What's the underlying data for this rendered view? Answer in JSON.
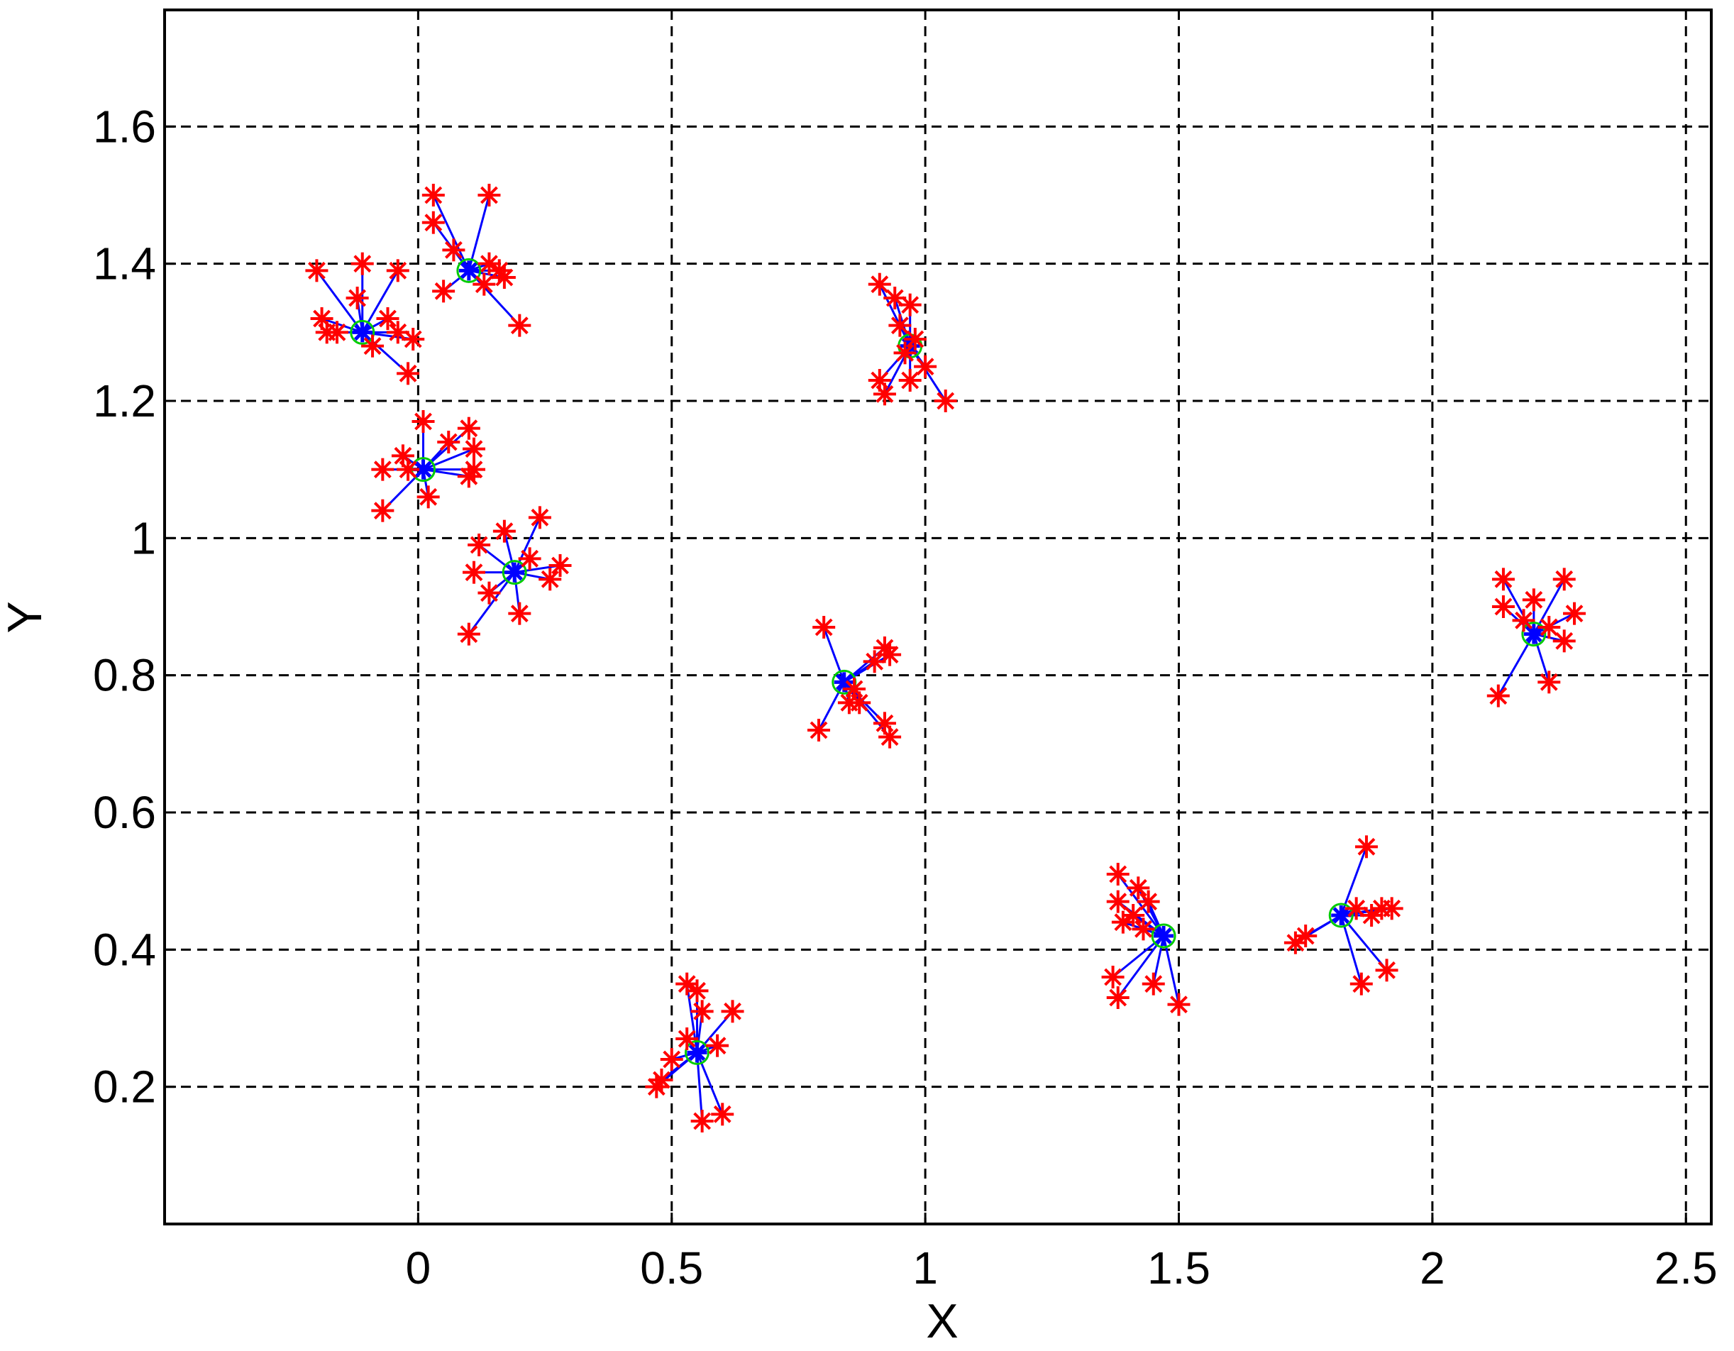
{
  "chart_data": {
    "type": "scatter",
    "title": "",
    "xlabel": "X",
    "ylabel": "Y",
    "xlim": [
      -0.5,
      2.55
    ],
    "ylim": [
      0,
      1.77
    ],
    "grid": true,
    "x_ticks": [
      {
        "value": 0,
        "label": "0"
      },
      {
        "value": 0.5,
        "label": "0.5"
      },
      {
        "value": 1,
        "label": "1"
      },
      {
        "value": 1.5,
        "label": "1.5"
      },
      {
        "value": 2,
        "label": "2"
      },
      {
        "value": 2.5,
        "label": "2.5"
      }
    ],
    "y_ticks": [
      {
        "value": 0.2,
        "label": "0.2"
      },
      {
        "value": 0.4,
        "label": "0.4"
      },
      {
        "value": 0.6,
        "label": "0.6"
      },
      {
        "value": 0.8,
        "label": "0.8"
      },
      {
        "value": 1,
        "label": "1"
      },
      {
        "value": 1.2,
        "label": "1.2"
      },
      {
        "value": 1.4,
        "label": "1.4"
      },
      {
        "value": 1.6,
        "label": "1.6"
      }
    ],
    "colors": {
      "points": "#ff0000",
      "links": "#0000ff",
      "centers": "#00cc00",
      "grid": "#000000",
      "frame": "#000000"
    },
    "clusters": [
      {
        "center": [
          -0.11,
          1.3
        ],
        "points": [
          [
            -0.2,
            1.39
          ],
          [
            -0.11,
            1.4
          ],
          [
            -0.04,
            1.39
          ],
          [
            -0.19,
            1.32
          ],
          [
            -0.18,
            1.3
          ],
          [
            -0.12,
            1.35
          ],
          [
            -0.06,
            1.32
          ],
          [
            -0.04,
            1.3
          ],
          [
            -0.01,
            1.29
          ],
          [
            -0.09,
            1.28
          ],
          [
            -0.02,
            1.24
          ],
          [
            -0.16,
            1.3
          ]
        ]
      },
      {
        "center": [
          0.1,
          1.39
        ],
        "points": [
          [
            0.03,
            1.5
          ],
          [
            0.14,
            1.5
          ],
          [
            0.03,
            1.46
          ],
          [
            0.05,
            1.36
          ],
          [
            0.14,
            1.4
          ],
          [
            0.17,
            1.38
          ],
          [
            0.13,
            1.37
          ],
          [
            0.2,
            1.31
          ],
          [
            0.16,
            1.39
          ],
          [
            0.07,
            1.42
          ]
        ]
      },
      {
        "center": [
          0.01,
          1.1
        ],
        "points": [
          [
            0.01,
            1.17
          ],
          [
            0.1,
            1.16
          ],
          [
            0.11,
            1.13
          ],
          [
            0.11,
            1.1
          ],
          [
            0.1,
            1.09
          ],
          [
            -0.07,
            1.1
          ],
          [
            -0.03,
            1.12
          ],
          [
            -0.07,
            1.04
          ],
          [
            0.02,
            1.06
          ],
          [
            0.06,
            1.14
          ],
          [
            -0.02,
            1.1
          ]
        ]
      },
      {
        "center": [
          0.19,
          0.95
        ],
        "points": [
          [
            0.24,
            1.03
          ],
          [
            0.17,
            1.01
          ],
          [
            0.12,
            0.99
          ],
          [
            0.11,
            0.95
          ],
          [
            0.14,
            0.92
          ],
          [
            0.28,
            0.96
          ],
          [
            0.26,
            0.94
          ],
          [
            0.2,
            0.89
          ],
          [
            0.1,
            0.86
          ],
          [
            0.22,
            0.97
          ]
        ]
      },
      {
        "center": [
          0.97,
          1.28
        ],
        "points": [
          [
            0.91,
            1.37
          ],
          [
            0.94,
            1.35
          ],
          [
            0.97,
            1.34
          ],
          [
            0.95,
            1.31
          ],
          [
            0.98,
            1.29
          ],
          [
            0.91,
            1.23
          ],
          [
            0.92,
            1.21
          ],
          [
            0.97,
            1.23
          ],
          [
            1.0,
            1.25
          ],
          [
            1.04,
            1.2
          ],
          [
            0.96,
            1.27
          ]
        ]
      },
      {
        "center": [
          0.84,
          0.79
        ],
        "points": [
          [
            0.8,
            0.87
          ],
          [
            0.92,
            0.84
          ],
          [
            0.9,
            0.82
          ],
          [
            0.93,
            0.83
          ],
          [
            0.87,
            0.76
          ],
          [
            0.85,
            0.76
          ],
          [
            0.92,
            0.73
          ],
          [
            0.93,
            0.71
          ],
          [
            0.79,
            0.72
          ],
          [
            0.86,
            0.78
          ]
        ]
      },
      {
        "center": [
          2.2,
          0.86
        ],
        "points": [
          [
            2.14,
            0.94
          ],
          [
            2.26,
            0.94
          ],
          [
            2.2,
            0.91
          ],
          [
            2.28,
            0.89
          ],
          [
            2.14,
            0.9
          ],
          [
            2.23,
            0.87
          ],
          [
            2.26,
            0.85
          ],
          [
            2.13,
            0.77
          ],
          [
            2.23,
            0.79
          ],
          [
            2.18,
            0.88
          ]
        ]
      },
      {
        "center": [
          1.47,
          0.42
        ],
        "points": [
          [
            1.38,
            0.51
          ],
          [
            1.42,
            0.49
          ],
          [
            1.44,
            0.47
          ],
          [
            1.38,
            0.47
          ],
          [
            1.39,
            0.44
          ],
          [
            1.37,
            0.36
          ],
          [
            1.38,
            0.33
          ],
          [
            1.45,
            0.35
          ],
          [
            1.5,
            0.32
          ],
          [
            1.41,
            0.45
          ],
          [
            1.43,
            0.43
          ]
        ]
      },
      {
        "center": [
          1.82,
          0.45
        ],
        "points": [
          [
            1.87,
            0.55
          ],
          [
            1.9,
            0.46
          ],
          [
            1.92,
            0.46
          ],
          [
            1.88,
            0.45
          ],
          [
            1.75,
            0.42
          ],
          [
            1.73,
            0.41
          ],
          [
            1.91,
            0.37
          ],
          [
            1.86,
            0.35
          ],
          [
            1.85,
            0.46
          ]
        ]
      },
      {
        "center": [
          0.55,
          0.25
        ],
        "points": [
          [
            0.53,
            0.35
          ],
          [
            0.55,
            0.34
          ],
          [
            0.56,
            0.31
          ],
          [
            0.62,
            0.31
          ],
          [
            0.59,
            0.26
          ],
          [
            0.5,
            0.24
          ],
          [
            0.48,
            0.21
          ],
          [
            0.47,
            0.2
          ],
          [
            0.56,
            0.15
          ],
          [
            0.6,
            0.16
          ],
          [
            0.53,
            0.27
          ]
        ]
      }
    ]
  }
}
